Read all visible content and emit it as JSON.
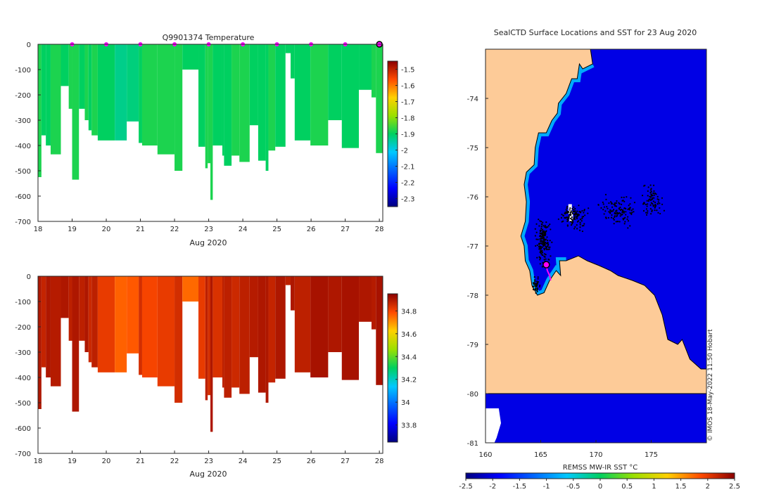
{
  "chart_data": [
    {
      "id": "temperature",
      "type": "heatmap",
      "title": "Q9901374  Temperature",
      "xlabel": "Aug 2020",
      "ylabel": "",
      "xlim": [
        18,
        28.1
      ],
      "ylim": [
        -700,
        0
      ],
      "xticks": [
        "18",
        "19",
        "20",
        "21",
        "22",
        "23",
        "24",
        "25",
        "26",
        "27",
        "28"
      ],
      "yticks": [
        "0",
        "-100",
        "-200",
        "-300",
        "-400",
        "-500",
        "-600",
        "-700"
      ],
      "colorbar": {
        "range": [
          -2.35,
          -1.45
        ],
        "ticks": [
          "-1.5",
          "-1.6",
          "-1.7",
          "-1.8",
          "-1.9",
          "-2",
          "-2.1",
          "-2.2",
          "-2.3"
        ]
      },
      "profile_markers": [
        19,
        20,
        21,
        22,
        23,
        24,
        25,
        26,
        27
      ],
      "current_profile": 28,
      "profiles": [
        {
          "x0": 18,
          "x1": 18.1,
          "depth": 525,
          "value": -1.88
        },
        {
          "x0": 18.1,
          "x1": 18.23,
          "depth": 360,
          "value": -1.9
        },
        {
          "x0": 18.23,
          "x1": 18.37,
          "depth": 400,
          "value": -1.9
        },
        {
          "x0": 18.37,
          "x1": 18.67,
          "depth": 435,
          "value": -1.88
        },
        {
          "x0": 18.67,
          "x1": 18.9,
          "depth": 165,
          "value": -1.9
        },
        {
          "x0": 18.9,
          "x1": 19.0,
          "depth": 255,
          "value": -1.88
        },
        {
          "x0": 19.0,
          "x1": 19.2,
          "depth": 535,
          "value": -1.88
        },
        {
          "x0": 19.2,
          "x1": 19.37,
          "depth": 255,
          "value": -1.9
        },
        {
          "x0": 19.37,
          "x1": 19.48,
          "depth": 300,
          "value": -1.88
        },
        {
          "x0": 19.48,
          "x1": 19.57,
          "depth": 340,
          "value": -1.9
        },
        {
          "x0": 19.57,
          "x1": 19.75,
          "depth": 360,
          "value": -1.88
        },
        {
          "x0": 19.75,
          "x1": 20.25,
          "depth": 380,
          "value": -1.9
        },
        {
          "x0": 20.25,
          "x1": 20.6,
          "depth": 380,
          "value": -1.93
        },
        {
          "x0": 20.6,
          "x1": 20.95,
          "depth": 305,
          "value": -1.92
        },
        {
          "x0": 20.95,
          "x1": 21.05,
          "depth": 390,
          "value": -1.9
        },
        {
          "x0": 21.05,
          "x1": 21.5,
          "depth": 400,
          "value": -1.88
        },
        {
          "x0": 21.5,
          "x1": 22.0,
          "depth": 435,
          "value": -1.88
        },
        {
          "x0": 22.0,
          "x1": 22.23,
          "depth": 500,
          "value": -1.88
        },
        {
          "x0": 22.23,
          "x1": 22.7,
          "depth": 100,
          "value": -1.9
        },
        {
          "x0": 22.7,
          "x1": 22.9,
          "depth": 405,
          "value": -1.9
        },
        {
          "x0": 22.9,
          "x1": 22.97,
          "depth": 490,
          "value": -1.88
        },
        {
          "x0": 22.97,
          "x1": 23.05,
          "depth": 470,
          "value": -1.88
        },
        {
          "x0": 23.05,
          "x1": 23.12,
          "depth": 615,
          "value": -1.88
        },
        {
          "x0": 23.12,
          "x1": 23.4,
          "depth": 400,
          "value": -1.9
        },
        {
          "x0": 23.4,
          "x1": 23.45,
          "depth": 440,
          "value": -1.9
        },
        {
          "x0": 23.45,
          "x1": 23.67,
          "depth": 480,
          "value": -1.9
        },
        {
          "x0": 23.67,
          "x1": 23.9,
          "depth": 440,
          "value": -1.88
        },
        {
          "x0": 23.9,
          "x1": 24.2,
          "depth": 465,
          "value": -1.88
        },
        {
          "x0": 24.2,
          "x1": 24.45,
          "depth": 320,
          "value": -1.9
        },
        {
          "x0": 24.45,
          "x1": 24.67,
          "depth": 460,
          "value": -1.9
        },
        {
          "x0": 24.67,
          "x1": 24.75,
          "depth": 500,
          "value": -1.9
        },
        {
          "x0": 24.75,
          "x1": 24.95,
          "depth": 420,
          "value": -1.88
        },
        {
          "x0": 24.95,
          "x1": 25.25,
          "depth": 405,
          "value": -1.9
        },
        {
          "x0": 25.25,
          "x1": 25.4,
          "depth": 35,
          "value": -1.9
        },
        {
          "x0": 25.4,
          "x1": 25.52,
          "depth": 135,
          "value": -1.9
        },
        {
          "x0": 25.52,
          "x1": 25.98,
          "depth": 380,
          "value": -1.9
        },
        {
          "x0": 25.98,
          "x1": 26.5,
          "depth": 400,
          "value": -1.88
        },
        {
          "x0": 26.5,
          "x1": 26.9,
          "depth": 300,
          "value": -1.9
        },
        {
          "x0": 26.9,
          "x1": 27.4,
          "depth": 410,
          "value": -1.9
        },
        {
          "x0": 27.4,
          "x1": 27.77,
          "depth": 180,
          "value": -1.9
        },
        {
          "x0": 27.77,
          "x1": 27.9,
          "depth": 210,
          "value": -1.88
        },
        {
          "x0": 27.9,
          "x1": 28.1,
          "depth": 430,
          "value": -1.88
        }
      ]
    },
    {
      "id": "salinity",
      "type": "heatmap",
      "title": "",
      "xlabel": "Aug 2020",
      "ylabel": "",
      "xlim": [
        18,
        28.1
      ],
      "ylim": [
        -700,
        0
      ],
      "xticks": [
        "18",
        "19",
        "20",
        "21",
        "22",
        "23",
        "24",
        "25",
        "26",
        "27",
        "28"
      ],
      "yticks": [
        "0",
        "-100",
        "-200",
        "-300",
        "-400",
        "-500",
        "-600",
        "-700"
      ],
      "colorbar": {
        "range": [
          33.65,
          34.95
        ],
        "ticks": [
          "34.8",
          "34.6",
          "34.4",
          "34.2",
          "34",
          "33.8"
        ]
      },
      "profiles": [
        {
          "x0": 18,
          "x1": 18.1,
          "depth": 525,
          "value": 34.9
        },
        {
          "x0": 18.1,
          "x1": 18.23,
          "depth": 360,
          "value": 34.87
        },
        {
          "x0": 18.23,
          "x1": 18.37,
          "depth": 400,
          "value": 34.9
        },
        {
          "x0": 18.37,
          "x1": 18.67,
          "depth": 435,
          "value": 34.89
        },
        {
          "x0": 18.67,
          "x1": 18.9,
          "depth": 165,
          "value": 34.9
        },
        {
          "x0": 18.9,
          "x1": 19.0,
          "depth": 255,
          "value": 34.88
        },
        {
          "x0": 19.0,
          "x1": 19.2,
          "depth": 535,
          "value": 34.9
        },
        {
          "x0": 19.2,
          "x1": 19.37,
          "depth": 255,
          "value": 34.88
        },
        {
          "x0": 19.37,
          "x1": 19.48,
          "depth": 300,
          "value": 34.9
        },
        {
          "x0": 19.48,
          "x1": 19.57,
          "depth": 340,
          "value": 34.86
        },
        {
          "x0": 19.57,
          "x1": 19.75,
          "depth": 360,
          "value": 34.88
        },
        {
          "x0": 19.75,
          "x1": 20.25,
          "depth": 380,
          "value": 34.82
        },
        {
          "x0": 20.25,
          "x1": 20.6,
          "depth": 380,
          "value": 34.76
        },
        {
          "x0": 20.6,
          "x1": 20.95,
          "depth": 305,
          "value": 34.77
        },
        {
          "x0": 20.95,
          "x1": 21.05,
          "depth": 390,
          "value": 34.85
        },
        {
          "x0": 21.05,
          "x1": 21.5,
          "depth": 400,
          "value": 34.8
        },
        {
          "x0": 21.5,
          "x1": 22.0,
          "depth": 435,
          "value": 34.82
        },
        {
          "x0": 22.0,
          "x1": 22.23,
          "depth": 500,
          "value": 34.85
        },
        {
          "x0": 22.23,
          "x1": 22.7,
          "depth": 100,
          "value": 34.75
        },
        {
          "x0": 22.7,
          "x1": 22.9,
          "depth": 405,
          "value": 34.82
        },
        {
          "x0": 22.9,
          "x1": 22.97,
          "depth": 490,
          "value": 34.88
        },
        {
          "x0": 22.97,
          "x1": 23.05,
          "depth": 470,
          "value": 34.85
        },
        {
          "x0": 23.05,
          "x1": 23.12,
          "depth": 615,
          "value": 34.9
        },
        {
          "x0": 23.12,
          "x1": 23.4,
          "depth": 400,
          "value": 34.84
        },
        {
          "x0": 23.4,
          "x1": 23.45,
          "depth": 440,
          "value": 34.88
        },
        {
          "x0": 23.45,
          "x1": 23.67,
          "depth": 480,
          "value": 34.88
        },
        {
          "x0": 23.67,
          "x1": 23.9,
          "depth": 440,
          "value": 34.86
        },
        {
          "x0": 23.9,
          "x1": 24.2,
          "depth": 465,
          "value": 34.88
        },
        {
          "x0": 24.2,
          "x1": 24.45,
          "depth": 320,
          "value": 34.89
        },
        {
          "x0": 24.45,
          "x1": 24.67,
          "depth": 460,
          "value": 34.9
        },
        {
          "x0": 24.67,
          "x1": 24.75,
          "depth": 500,
          "value": 34.9
        },
        {
          "x0": 24.75,
          "x1": 24.95,
          "depth": 420,
          "value": 34.87
        },
        {
          "x0": 24.95,
          "x1": 25.25,
          "depth": 405,
          "value": 34.9
        },
        {
          "x0": 25.25,
          "x1": 25.4,
          "depth": 35,
          "value": 34.88
        },
        {
          "x0": 25.4,
          "x1": 25.52,
          "depth": 135,
          "value": 34.9
        },
        {
          "x0": 25.52,
          "x1": 25.98,
          "depth": 380,
          "value": 34.88
        },
        {
          "x0": 25.98,
          "x1": 26.5,
          "depth": 400,
          "value": 34.91
        },
        {
          "x0": 26.5,
          "x1": 26.9,
          "depth": 300,
          "value": 34.9
        },
        {
          "x0": 26.9,
          "x1": 27.4,
          "depth": 410,
          "value": 34.91
        },
        {
          "x0": 27.4,
          "x1": 27.77,
          "depth": 180,
          "value": 34.9
        },
        {
          "x0": 27.77,
          "x1": 27.9,
          "depth": 210,
          "value": 34.89
        },
        {
          "x0": 27.9,
          "x1": 28.1,
          "depth": 430,
          "value": 34.91
        }
      ]
    },
    {
      "id": "sst-map",
      "type": "heatmap",
      "title": "SealCTD Surface Locations and SST for 23 Aug 2020",
      "xlabel": "",
      "ylabel": "",
      "xlim": [
        160,
        180
      ],
      "ylim": [
        -81,
        -73
      ],
      "xticks": [
        "160",
        "165",
        "170",
        "175"
      ],
      "yticks": [
        "-74",
        "-75",
        "-76",
        "-77",
        "-78",
        "-79",
        "-80",
        "-81"
      ],
      "colorbar": {
        "label": "REMSS MW-IR SST °C",
        "range": [
          -2.5,
          2.5
        ],
        "ticks": [
          "-2.5",
          "-2",
          "-1.5",
          "-1",
          "-0.5",
          "0",
          "0.5",
          "1",
          "1.5",
          "2",
          "2.5"
        ]
      },
      "ocean_sst": -2.0,
      "coast_polygon": [
        [
          169.5,
          -73.0
        ],
        [
          169.7,
          -73.3
        ],
        [
          168.8,
          -73.4
        ],
        [
          168.5,
          -73.3
        ],
        [
          168.3,
          -73.6
        ],
        [
          167.8,
          -73.6
        ],
        [
          167.3,
          -73.9
        ],
        [
          166.6,
          -74.1
        ],
        [
          166.5,
          -74.3
        ],
        [
          166.0,
          -74.45
        ],
        [
          165.5,
          -74.7
        ],
        [
          164.8,
          -74.7
        ],
        [
          164.5,
          -75.0
        ],
        [
          164.4,
          -75.35
        ],
        [
          163.7,
          -75.5
        ],
        [
          163.5,
          -75.75
        ],
        [
          163.7,
          -76.1
        ],
        [
          163.6,
          -76.5
        ],
        [
          163.2,
          -76.8
        ],
        [
          163.5,
          -77.0
        ],
        [
          163.6,
          -77.3
        ],
        [
          164.0,
          -77.5
        ],
        [
          164.2,
          -77.8
        ],
        [
          164.7,
          -78.0
        ],
        [
          165.3,
          -77.95
        ],
        [
          165.8,
          -77.7
        ],
        [
          166.4,
          -77.5
        ],
        [
          166.8,
          -77.6
        ],
        [
          166.7,
          -77.3
        ],
        [
          167.3,
          -77.3
        ],
        [
          168.4,
          -77.2
        ],
        [
          169.2,
          -77.3
        ],
        [
          170.3,
          -77.4
        ],
        [
          171.3,
          -77.5
        ],
        [
          172.0,
          -77.6
        ],
        [
          173.3,
          -77.7
        ],
        [
          174.4,
          -77.8
        ],
        [
          175.3,
          -78.0
        ],
        [
          176.0,
          -78.4
        ],
        [
          176.5,
          -78.9
        ],
        [
          177.4,
          -79.0
        ],
        [
          177.8,
          -78.9
        ],
        [
          178.5,
          -79.3
        ],
        [
          179.5,
          -79.5
        ],
        [
          180.0,
          -79.5
        ],
        [
          180.0,
          -80.0
        ],
        [
          160.0,
          -80.0
        ],
        [
          160.0,
          -73.0
        ]
      ],
      "sea_ice_gaps": [
        [
          167.5,
          -76.15
        ],
        [
          167.6,
          -76.3
        ]
      ],
      "seal_path": [
        [
          165.5,
          -77.4
        ],
        [
          165.6,
          -77.5
        ],
        [
          165.8,
          -77.6
        ],
        [
          165.9,
          -77.7
        ]
      ],
      "seal_current": [
        165.5,
        -77.38
      ],
      "tracks": [
        {
          "center": [
            165.2,
            -76.9
          ],
          "sx": 0.9,
          "sy": 0.55,
          "n": 180
        },
        {
          "center": [
            168.0,
            -76.4
          ],
          "sx": 1.6,
          "sy": 0.35,
          "n": 120
        },
        {
          "center": [
            172.0,
            -76.3
          ],
          "sx": 2.2,
          "sy": 0.4,
          "n": 120
        },
        {
          "center": [
            175.0,
            -76.1
          ],
          "sx": 1.4,
          "sy": 0.45,
          "n": 80
        },
        {
          "center": [
            164.6,
            -77.8
          ],
          "sx": 0.5,
          "sy": 0.25,
          "n": 40
        }
      ]
    }
  ],
  "credit": "© IMOS 18-May-2022 11:50 Hobart"
}
